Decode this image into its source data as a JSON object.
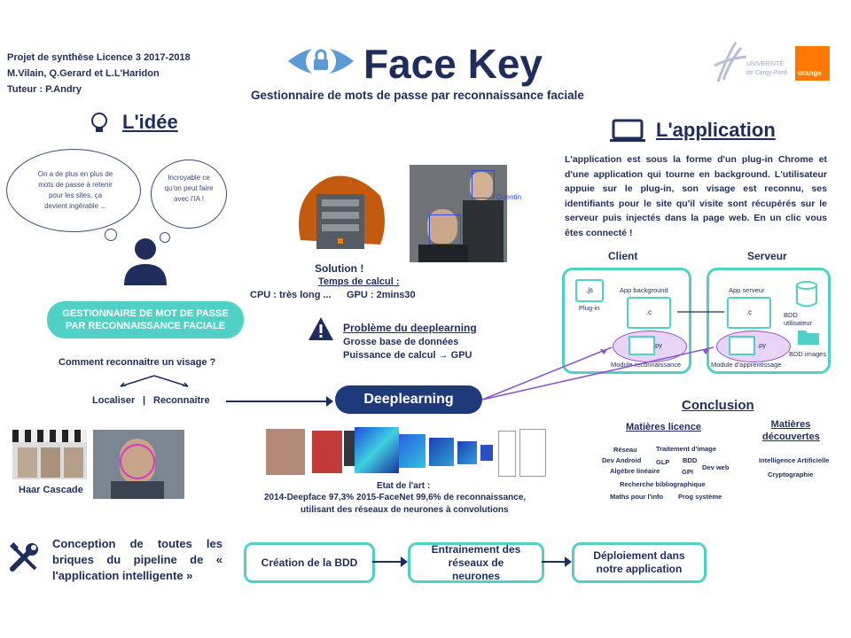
{
  "header": {
    "project": "Projet de synthèse Licence 3 2017-2018",
    "authors": "M.Vilain, Q.Gerard et L.L'Haridon",
    "tutor": "Tuteur : P.Andry",
    "title": "Face Key",
    "subtitle": "Gestionnaire de mots de passe par reconnaissance faciale",
    "univ_logo_text": "UNIVERSITÉ de Cergy-Pontoise",
    "orange_logo_text": "orange"
  },
  "idee": {
    "title": "L'idée",
    "cloud1": "On a de plus en plus de mots de passe à retenir pour les sites, ça devient ingérable ...",
    "cloud2": "Incroyable ce qu'on peut faire avec l'IA !",
    "pill": "GESTIONNAIRE DE MOT DE PASSE PAR RECONNAISSANCE FACIALE",
    "question": "Comment reconnaitre un visage ?",
    "localiser": "Localiser",
    "separator": "|",
    "reconnaitre": "Reconnaitre",
    "haar": "Haar Cascade"
  },
  "solution": {
    "title": "Solution !",
    "temps": "Temps de calcul :",
    "cpu": "CPU : très long ...",
    "gpu": "GPU : 2mins30",
    "photo_label": "Quentin"
  },
  "probleme": {
    "title": "Problème du deeplearning",
    "line1": "Grosse base de données",
    "line2": "Puissance de calcul → GPU"
  },
  "deeplearning": {
    "label": "Deeplearning",
    "etat_title": "Etat de l'art :",
    "etat_line1": "2014-Deepface 97,3%   2015-FaceNet 99,6% de reconnaissance,",
    "etat_line2": "utilisant des réseaux de neurones à convolutions"
  },
  "application": {
    "title": "L'application",
    "text": "L'application est sous la forme d'un plug-in Chrome et d'une application qui tourne en background. L'utilisateur appuie sur le plug-in, son visage est reconnu, ses identifiants pour le site qu'il visite sont récupérés sur le serveur puis injectés dans la page web. En un clic vous êtes connecté !",
    "client": "Client",
    "serveur": "Serveur",
    "js": ".js",
    "plugin": "Plug-in",
    "app_background": "App background",
    "c1": ".c",
    "py1": ".py",
    "module_reco": "Module reconnaissance",
    "app_serveur": "App serveur",
    "c2": ".c",
    "bdd_user": "BDD utilisateur",
    "py2": ".py",
    "bdd_images": "BDD images",
    "module_app": "Module d'apprentissage"
  },
  "conclusion": {
    "title": "Conclusion",
    "licence_title": "Matières licence",
    "licence_items": [
      "Réseau",
      "Traitement d'image",
      "Dev Android",
      "GLP",
      "BDD",
      "Algèbre linéaire",
      "GPI",
      "Dev web",
      "Recherche bibliographique",
      "Maths pour l'info",
      "Prog système"
    ],
    "decouvertes_title": "Matières découvertes",
    "decouvertes_items": [
      "Intelligence Artificielle",
      "Cryptographie"
    ]
  },
  "pipeline": {
    "text": "Conception de toutes les briques du pipeline de « l'application intelligente »",
    "steps": [
      "Création de la BDD",
      "Entrainement des réseaux de neurones",
      "Déploiement dans notre application"
    ]
  },
  "colors": {
    "navy": "#1f2d5c",
    "teal": "#4fd1c5",
    "purple": "#8a55c8",
    "orange": "#ff7900"
  }
}
